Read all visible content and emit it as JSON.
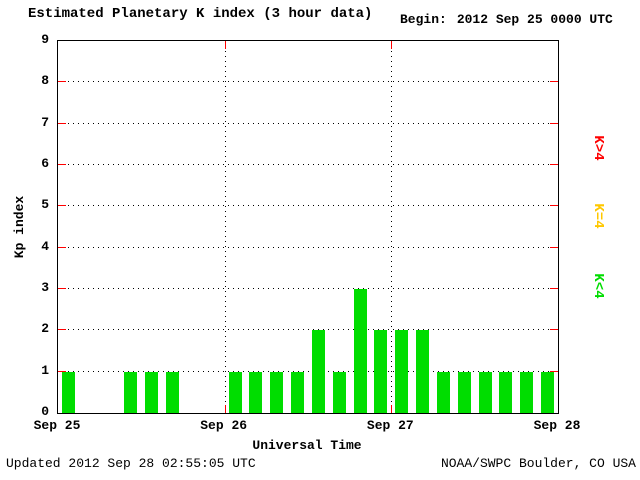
{
  "header": {
    "title": "Estimated Planetary K index (3 hour data)",
    "begin_label": "Begin:",
    "begin_value": "2012 Sep 25 0000 UTC"
  },
  "footer": {
    "updated": "Updated 2012 Sep 28 02:55:05 UTC",
    "source": "NOAA/SWPC Boulder, CO USA"
  },
  "legend": {
    "items": [
      {
        "label": "K>4",
        "color": "#ff0000"
      },
      {
        "label": "K=4",
        "color": "#ffc800"
      },
      {
        "label": "K<4",
        "color": "#00dd00"
      }
    ]
  },
  "chart_data": {
    "type": "bar",
    "title": "Estimated Planetary K index (3 hour data)",
    "xlabel": "Universal Time",
    "ylabel": "Kp index",
    "ylim": [
      0,
      9
    ],
    "yticks": [
      0,
      1,
      2,
      3,
      4,
      5,
      6,
      7,
      8,
      9
    ],
    "day_labels": [
      "Sep 25",
      "Sep 26",
      "Sep 27",
      "Sep 28"
    ],
    "bars_per_day": 8,
    "bar_interval_hours": 3,
    "values": [
      1,
      0,
      0,
      1,
      1,
      1,
      0,
      0,
      1,
      1,
      1,
      1,
      2,
      1,
      3,
      2,
      2,
      2,
      1,
      1,
      1,
      1,
      1,
      1
    ],
    "colors": {
      "low": "#00dd00",
      "mid": "#ffc800",
      "high": "#ff0000"
    },
    "color_rule": "green for K<4, yellow for K=4, red for K>4",
    "grid": "dotted horizontal lines at each integer, dotted vertical lines at day boundaries",
    "tick_color": "#ff0000",
    "legend_position": "right, rotated"
  }
}
